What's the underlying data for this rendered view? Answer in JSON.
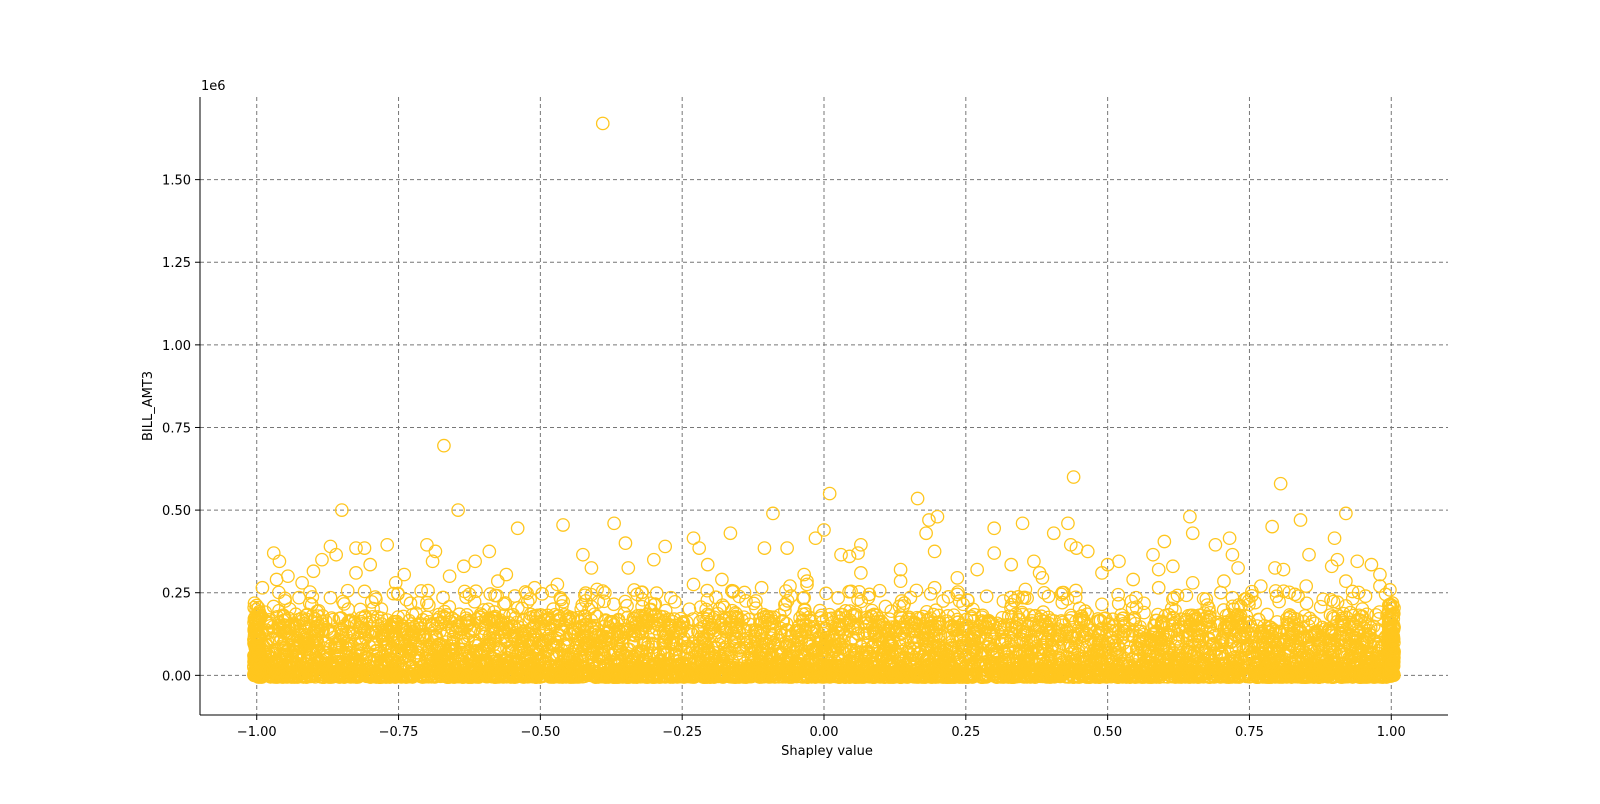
{
  "chart_data": {
    "type": "scatter",
    "xlabel": "Shapley value",
    "ylabel": "BILL_AMT3",
    "y_offset_text": "1e6",
    "xlim": [
      -1.1,
      1.1
    ],
    "ylim": [
      -0.12,
      1.75
    ],
    "x_ticks": [
      -1.0,
      -0.75,
      -0.5,
      -0.25,
      0.0,
      0.25,
      0.5,
      0.75,
      1.0
    ],
    "x_tick_labels": [
      "−1.00",
      "−0.75",
      "−0.50",
      "−0.25",
      "0.00",
      "0.25",
      "0.50",
      "0.75",
      "1.00"
    ],
    "y_ticks": [
      0.0,
      0.25,
      0.5,
      0.75,
      1.0,
      1.25,
      1.5
    ],
    "y_tick_labels": [
      "0.00",
      "0.25",
      "0.50",
      "0.75",
      "1.00",
      "1.25",
      "1.50"
    ],
    "grid": true,
    "marker": "open-circle",
    "marker_color": "#FFC61E",
    "grid_color": "#777777",
    "x_range_points": [
      -1.0,
      1.0
    ],
    "series": [
      {
        "values_note_excluded": true,
        "points": [
          [
            -0.39,
            1.67
          ],
          [
            -0.67,
            0.695
          ],
          [
            0.44,
            0.6
          ],
          [
            0.805,
            0.58
          ],
          [
            0.01,
            0.55
          ],
          [
            0.165,
            0.535
          ],
          [
            -0.85,
            0.5
          ],
          [
            -0.645,
            0.5
          ],
          [
            -0.09,
            0.49
          ],
          [
            0.92,
            0.49
          ],
          [
            0.2,
            0.48
          ],
          [
            0.645,
            0.48
          ],
          [
            0.185,
            0.47
          ],
          [
            0.84,
            0.47
          ],
          [
            -0.37,
            0.46
          ],
          [
            0.35,
            0.46
          ],
          [
            0.43,
            0.46
          ],
          [
            -0.46,
            0.455
          ],
          [
            0.79,
            0.45
          ],
          [
            -0.54,
            0.445
          ],
          [
            0.3,
            0.445
          ],
          [
            0.0,
            0.44
          ],
          [
            0.405,
            0.43
          ],
          [
            0.18,
            0.43
          ],
          [
            -0.165,
            0.43
          ],
          [
            0.65,
            0.43
          ],
          [
            -0.23,
            0.415
          ],
          [
            0.715,
            0.415
          ],
          [
            0.9,
            0.415
          ],
          [
            -0.015,
            0.415
          ],
          [
            0.6,
            0.405
          ],
          [
            -0.35,
            0.4
          ],
          [
            -0.7,
            0.395
          ],
          [
            -0.77,
            0.395
          ],
          [
            0.065,
            0.395
          ],
          [
            0.435,
            0.395
          ],
          [
            0.69,
            0.395
          ],
          [
            -0.87,
            0.39
          ],
          [
            -0.28,
            0.39
          ],
          [
            -0.825,
            0.385
          ],
          [
            -0.81,
            0.385
          ],
          [
            -0.065,
            0.385
          ],
          [
            -0.105,
            0.385
          ],
          [
            0.445,
            0.385
          ],
          [
            -0.22,
            0.385
          ],
          [
            0.195,
            0.375
          ],
          [
            0.465,
            0.375
          ],
          [
            -0.685,
            0.375
          ],
          [
            -0.59,
            0.375
          ],
          [
            -0.97,
            0.37
          ],
          [
            0.3,
            0.37
          ],
          [
            0.06,
            0.37
          ],
          [
            0.58,
            0.365
          ],
          [
            0.72,
            0.365
          ],
          [
            -0.86,
            0.365
          ],
          [
            -0.425,
            0.365
          ],
          [
            0.03,
            0.365
          ],
          [
            0.045,
            0.36
          ],
          [
            0.855,
            0.365
          ],
          [
            -0.69,
            0.345
          ],
          [
            -0.96,
            0.345
          ],
          [
            -0.615,
            0.345
          ],
          [
            0.37,
            0.345
          ],
          [
            0.52,
            0.345
          ],
          [
            0.94,
            0.345
          ],
          [
            -0.885,
            0.35
          ],
          [
            -0.3,
            0.35
          ],
          [
            0.905,
            0.35
          ],
          [
            0.965,
            0.335
          ],
          [
            0.33,
            0.335
          ],
          [
            -0.8,
            0.335
          ],
          [
            -0.205,
            0.335
          ],
          [
            0.5,
            0.335
          ],
          [
            0.615,
            0.33
          ],
          [
            0.895,
            0.33
          ],
          [
            -0.635,
            0.33
          ],
          [
            -0.345,
            0.325
          ],
          [
            0.73,
            0.325
          ],
          [
            0.795,
            0.325
          ],
          [
            -0.41,
            0.325
          ],
          [
            0.135,
            0.32
          ],
          [
            0.27,
            0.32
          ],
          [
            0.59,
            0.32
          ],
          [
            0.81,
            0.32
          ],
          [
            -0.9,
            0.315
          ],
          [
            -0.825,
            0.31
          ],
          [
            0.49,
            0.31
          ],
          [
            0.065,
            0.31
          ],
          [
            0.38,
            0.31
          ],
          [
            -0.035,
            0.305
          ],
          [
            -0.74,
            0.305
          ],
          [
            -0.56,
            0.305
          ],
          [
            0.98,
            0.305
          ],
          [
            -0.945,
            0.3
          ],
          [
            -0.66,
            0.3
          ],
          [
            0.385,
            0.295
          ],
          [
            0.235,
            0.295
          ],
          [
            -0.965,
            0.29
          ],
          [
            -0.18,
            0.29
          ],
          [
            0.545,
            0.29
          ],
          [
            -0.575,
            0.285
          ],
          [
            0.92,
            0.285
          ],
          [
            -0.03,
            0.285
          ],
          [
            0.135,
            0.285
          ],
          [
            0.705,
            0.285
          ],
          [
            -0.92,
            0.28
          ],
          [
            -0.755,
            0.28
          ],
          [
            -0.03,
            0.275
          ],
          [
            -0.47,
            0.275
          ],
          [
            -0.23,
            0.275
          ],
          [
            0.65,
            0.28
          ],
          [
            0.85,
            0.27
          ],
          [
            0.98,
            0.27
          ],
          [
            0.77,
            0.27
          ],
          [
            -0.99,
            0.265
          ],
          [
            -0.51,
            0.265
          ],
          [
            -0.11,
            0.265
          ],
          [
            -0.06,
            0.27
          ],
          [
            0.195,
            0.265
          ],
          [
            0.355,
            0.26
          ],
          [
            -0.4,
            0.26
          ],
          [
            0.59,
            0.265
          ],
          [
            0.42,
            0.25
          ],
          [
            0.08,
            0.245
          ],
          [
            -0.39,
            0.255
          ],
          [
            -0.16,
            0.255
          ],
          [
            0.235,
            0.245
          ],
          [
            -0.625,
            0.245
          ],
          [
            0.99,
            0.245
          ],
          [
            -0.87,
            0.235
          ],
          [
            0.35,
            0.235
          ],
          [
            0.55,
            0.235
          ],
          [
            0.72,
            0.235
          ],
          [
            0.83,
            0.245
          ],
          [
            -0.545,
            0.24
          ],
          [
            -0.27,
            0.235
          ],
          [
            0.06,
            0.23
          ],
          [
            0.21,
            0.225
          ],
          [
            0.615,
            0.23
          ],
          [
            0.88,
            0.23
          ],
          [
            -0.95,
            0.225
          ],
          [
            -0.79,
            0.23
          ],
          [
            -0.42,
            0.225
          ],
          [
            -0.12,
            0.225
          ],
          [
            0.42,
            0.22
          ],
          [
            0.76,
            0.22
          ],
          [
            -0.7,
            0.22
          ],
          [
            0.14,
            0.21
          ],
          [
            0.49,
            0.215
          ],
          [
            0.92,
            0.21
          ]
        ]
      }
    ]
  }
}
